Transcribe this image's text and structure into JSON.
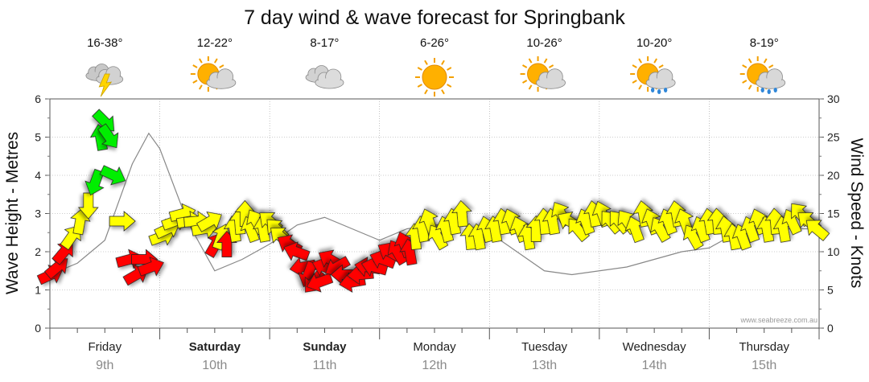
{
  "chart_data": {
    "type": "line",
    "title": "7 day wind & wave forecast for Springbank",
    "y_left": {
      "label": "Wave Height - Metres",
      "ticks": [
        0,
        1,
        2,
        3,
        4,
        5,
        6
      ],
      "range": [
        0,
        6
      ]
    },
    "y_right": {
      "label": "Wind Speed - Knots",
      "ticks": [
        0,
        5,
        10,
        15,
        20,
        25,
        30
      ],
      "range": [
        0,
        30
      ]
    },
    "x_range_days": [
      0,
      7
    ],
    "days": [
      {
        "name": "Friday",
        "date": "9th",
        "bold": false,
        "temp": "16-38°",
        "weather": "storm"
      },
      {
        "name": "Saturday",
        "date": "10th",
        "bold": true,
        "temp": "12-22°",
        "weather": "partly-cloudy"
      },
      {
        "name": "Sunday",
        "date": "11th",
        "bold": true,
        "temp": "8-17°",
        "weather": "cloudy"
      },
      {
        "name": "Monday",
        "date": "12th",
        "bold": false,
        "temp": "6-26°",
        "weather": "sunny"
      },
      {
        "name": "Tuesday",
        "date": "13th",
        "bold": false,
        "temp": "10-26°",
        "weather": "partly-cloudy"
      },
      {
        "name": "Wednesday",
        "date": "14th",
        "bold": false,
        "temp": "10-20°",
        "weather": "showers"
      },
      {
        "name": "Thursday",
        "date": "15th",
        "bold": false,
        "temp": "8-19°",
        "weather": "showers"
      }
    ],
    "colors": {
      "low": "#ff0000",
      "mid": "#ffff00",
      "high": "#00ee00",
      "grid": "#999999",
      "line": "#888888"
    },
    "wave_series": {
      "name": "Wave Height",
      "points": [
        [
          0.0,
          1.4
        ],
        [
          0.25,
          1.7
        ],
        [
          0.5,
          2.3
        ],
        [
          0.75,
          4.3
        ],
        [
          0.9,
          5.1
        ],
        [
          1.0,
          4.7
        ],
        [
          1.25,
          2.8
        ],
        [
          1.5,
          1.5
        ],
        [
          1.75,
          1.8
        ],
        [
          2.0,
          2.2
        ],
        [
          2.25,
          2.7
        ],
        [
          2.5,
          2.9
        ],
        [
          2.75,
          2.6
        ],
        [
          3.0,
          2.3
        ],
        [
          3.25,
          2.6
        ],
        [
          3.5,
          2.7
        ],
        [
          3.75,
          2.7
        ],
        [
          4.0,
          2.5
        ],
        [
          4.25,
          2.0
        ],
        [
          4.5,
          1.5
        ],
        [
          4.75,
          1.4
        ],
        [
          5.0,
          1.5
        ],
        [
          5.25,
          1.6
        ],
        [
          5.5,
          1.8
        ],
        [
          5.75,
          2.0
        ],
        [
          6.0,
          2.1
        ],
        [
          6.25,
          2.5
        ],
        [
          6.5,
          2.6
        ],
        [
          6.75,
          2.6
        ],
        [
          7.0,
          2.6
        ]
      ]
    },
    "wind_series": {
      "name": "Wind",
      "note": "direction = degrees wind blows toward (0 = right/east, 90 = down)",
      "points": [
        {
          "t": 0.02,
          "speed": 7,
          "dir": -25
        },
        {
          "t": 0.14,
          "speed": 8,
          "dir": -40
        },
        {
          "t": 0.26,
          "speed": 10,
          "dir": -50
        },
        {
          "t": 0.4,
          "speed": 12,
          "dir": -55
        },
        {
          "t": 0.55,
          "speed": 14,
          "dir": -80
        },
        {
          "t": 0.7,
          "speed": 16,
          "dir": 90
        },
        {
          "t": 0.82,
          "speed": 19,
          "dir": 110
        },
        {
          "t": 0.92,
          "speed": 25,
          "dir": -100
        },
        {
          "t": 1.0,
          "speed": 27,
          "dir": 45
        },
        {
          "t": 1.08,
          "speed": 25,
          "dir": 55
        },
        {
          "t": 1.16,
          "speed": 20,
          "dir": 25
        },
        {
          "t": 1.32,
          "speed": 14,
          "dir": 0
        },
        {
          "t": 1.45,
          "speed": 9,
          "dir": -15
        },
        {
          "t": 1.58,
          "speed": 7,
          "dir": -30
        },
        {
          "t": 1.72,
          "speed": 9,
          "dir": 0
        },
        {
          "t": 1.85,
          "speed": 8,
          "dir": -20
        },
        {
          "t": 2.05,
          "speed": 12,
          "dir": -20
        },
        {
          "t": 2.15,
          "speed": 13,
          "dir": -25
        },
        {
          "t": 2.28,
          "speed": 14,
          "dir": -20
        },
        {
          "t": 2.42,
          "speed": 15,
          "dir": -15
        },
        {
          "t": 2.55,
          "speed": 14,
          "dir": -10
        },
        {
          "t": 2.68,
          "speed": 14,
          "dir": -5
        },
        {
          "t": 2.82,
          "speed": 13,
          "dir": -10
        },
        {
          "t": 2.92,
          "speed": 14,
          "dir": -30
        },
        {
          "t": 3.02,
          "speed": 11,
          "dir": -60
        },
        {
          "t": 3.12,
          "speed": 12,
          "dir": -70
        },
        {
          "t": 3.22,
          "speed": 11,
          "dir": -90
        },
        {
          "t": 3.35,
          "speed": 13,
          "dir": -100
        },
        {
          "t": 3.45,
          "speed": 14,
          "dir": -95
        },
        {
          "t": 3.55,
          "speed": 15,
          "dir": -90
        },
        {
          "t": 3.65,
          "speed": 13,
          "dir": -110
        },
        {
          "t": 3.75,
          "speed": 14,
          "dir": -120
        },
        {
          "t": 3.88,
          "speed": 13,
          "dir": -100
        },
        {
          "t": 4.0,
          "speed": 14,
          "dir": -140
        },
        {
          "t": 4.12,
          "speed": 13,
          "dir": -135
        },
        {
          "t": 4.2,
          "speed": 12,
          "dir": -140
        },
        {
          "t": 4.35,
          "speed": 11,
          "dir": -150
        },
        {
          "t": 4.48,
          "speed": 10,
          "dir": -160
        },
        {
          "t": 4.6,
          "speed": 8,
          "dir": 170
        },
        {
          "t": 4.7,
          "speed": 7,
          "dir": 110
        },
        {
          "t": 4.8,
          "speed": 6,
          "dir": 130
        },
        {
          "t": 4.9,
          "speed": 6,
          "dir": 160
        },
        {
          "t": 5.0,
          "speed": 8,
          "dir": -160
        },
        {
          "t": 5.1,
          "speed": 9,
          "dir": -150
        },
        {
          "t": 5.22,
          "speed": 8,
          "dir": 150
        },
        {
          "t": 5.35,
          "speed": 7,
          "dir": 180
        },
        {
          "t": 5.5,
          "speed": 6,
          "dir": 170
        },
        {
          "t": 5.65,
          "speed": 7,
          "dir": 175
        },
        {
          "t": 5.78,
          "speed": 8,
          "dir": -170
        },
        {
          "t": 5.9,
          "speed": 8,
          "dir": -165
        },
        {
          "t": 6.05,
          "speed": 9,
          "dir": -160
        },
        {
          "t": 6.18,
          "speed": 10,
          "dir": -150
        },
        {
          "t": 6.32,
          "speed": 10,
          "dir": -120
        },
        {
          "t": 6.45,
          "speed": 11,
          "dir": -110
        },
        {
          "t": 6.55,
          "speed": 10,
          "dir": -100
        },
        {
          "t": 6.65,
          "speed": 12,
          "dir": -95
        },
        {
          "t": 6.78,
          "speed": 13,
          "dir": -100
        },
        {
          "t": 6.9,
          "speed": 14,
          "dir": -110
        },
        {
          "t": 7.05,
          "speed": 12,
          "dir": -120
        },
        {
          "t": 7.2,
          "speed": 13,
          "dir": -105
        },
        {
          "t": 7.35,
          "speed": 14,
          "dir": -100
        },
        {
          "t": 7.5,
          "speed": 15,
          "dir": -95
        },
        {
          "t": 7.65,
          "speed": 12,
          "dir": -95
        },
        {
          "t": 7.8,
          "speed": 12,
          "dir": -100
        },
        {
          "t": 7.95,
          "speed": 13,
          "dir": -105
        },
        {
          "t": 8.1,
          "speed": 13,
          "dir": -100
        },
        {
          "t": 8.25,
          "speed": 14,
          "dir": -100
        },
        {
          "t": 8.4,
          "speed": 14,
          "dir": -110
        },
        {
          "t": 8.55,
          "speed": 13,
          "dir": -110
        },
        {
          "t": 8.7,
          "speed": 12,
          "dir": -100
        },
        {
          "t": 8.85,
          "speed": 13,
          "dir": -90
        },
        {
          "t": 9.0,
          "speed": 14,
          "dir": -95
        },
        {
          "t": 9.15,
          "speed": 14,
          "dir": -100
        },
        {
          "t": 9.3,
          "speed": 15,
          "dir": -120
        },
        {
          "t": 9.45,
          "speed": 14,
          "dir": -150
        },
        {
          "t": 9.6,
          "speed": 13,
          "dir": -130
        },
        {
          "t": 9.75,
          "speed": 14,
          "dir": -110
        },
        {
          "t": 9.9,
          "speed": 15,
          "dir": -100
        },
        {
          "t": 10.05,
          "speed": 15,
          "dir": -110
        },
        {
          "t": 10.2,
          "speed": 14,
          "dir": -130
        },
        {
          "t": 10.35,
          "speed": 14,
          "dir": -130
        },
        {
          "t": 10.5,
          "speed": 14,
          "dir": -125
        },
        {
          "t": 10.65,
          "speed": 13,
          "dir": -110
        },
        {
          "t": 10.8,
          "speed": 15,
          "dir": -100
        },
        {
          "t": 10.95,
          "speed": 14,
          "dir": -110
        },
        {
          "t": 11.1,
          "speed": 13,
          "dir": -120
        },
        {
          "t": 11.25,
          "speed": 14,
          "dir": -110
        },
        {
          "t": 11.4,
          "speed": 15,
          "dir": -100
        },
        {
          "t": 11.55,
          "speed": 14,
          "dir": -110
        },
        {
          "t": 11.7,
          "speed": 12,
          "dir": -120
        },
        {
          "t": 11.85,
          "speed": 13,
          "dir": -110
        },
        {
          "t": 12.0,
          "speed": 14,
          "dir": -100
        },
        {
          "t": 12.15,
          "speed": 14,
          "dir": -95
        },
        {
          "t": 12.3,
          "speed": 13,
          "dir": -100
        },
        {
          "t": 12.45,
          "speed": 12,
          "dir": -100
        },
        {
          "t": 12.6,
          "speed": 12,
          "dir": -110
        },
        {
          "t": 12.75,
          "speed": 13,
          "dir": -110
        },
        {
          "t": 12.9,
          "speed": 14,
          "dir": -110
        },
        {
          "t": 13.05,
          "speed": 13,
          "dir": -100
        },
        {
          "t": 13.2,
          "speed": 14,
          "dir": -95
        },
        {
          "t": 13.35,
          "speed": 13,
          "dir": -100
        },
        {
          "t": 13.5,
          "speed": 14,
          "dir": -115
        },
        {
          "t": 13.65,
          "speed": 15,
          "dir": -130
        },
        {
          "t": 13.8,
          "speed": 14,
          "dir": -140
        },
        {
          "t": 13.95,
          "speed": 13,
          "dir": -140
        }
      ]
    },
    "credit": "www.seabreeze.com.au"
  }
}
